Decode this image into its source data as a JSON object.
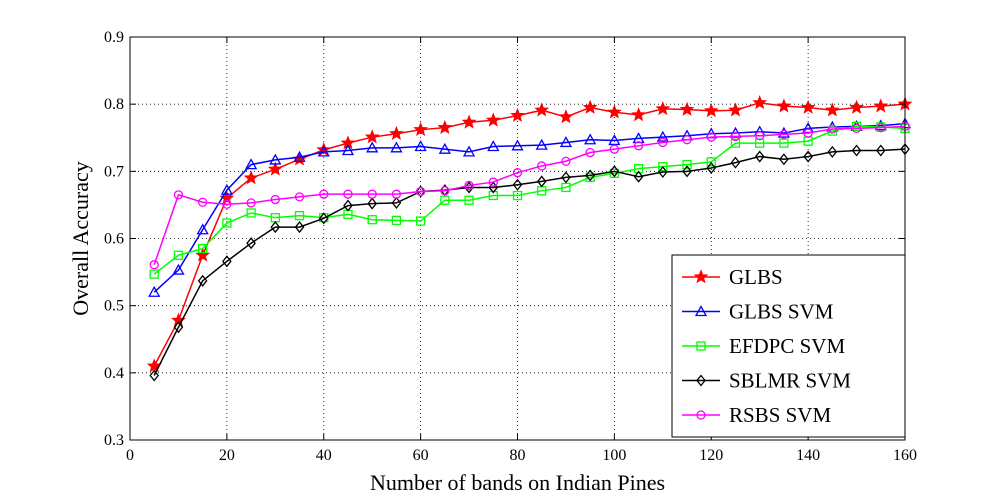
{
  "chart_data": {
    "type": "line",
    "xlabel": "Number of bands on Indian Pines",
    "ylabel": "Overall Accuracy",
    "xlim": [
      0,
      160
    ],
    "ylim": [
      0.3,
      0.9
    ],
    "x_ticks": [
      "0",
      "20",
      "40",
      "60",
      "80",
      "100",
      "120",
      "140",
      "160"
    ],
    "y_ticks": [
      "0.3",
      "0.4",
      "0.5",
      "0.6",
      "0.7",
      "0.8",
      "0.9"
    ],
    "grid": true,
    "grid_style": "dotted",
    "legend_position": "bottom-right",
    "x": [
      5,
      10,
      15,
      20,
      25,
      30,
      35,
      40,
      45,
      50,
      55,
      60,
      65,
      70,
      75,
      80,
      85,
      90,
      95,
      100,
      105,
      110,
      115,
      120,
      125,
      130,
      135,
      140,
      145,
      150,
      155,
      160
    ],
    "series": [
      {
        "name": "GLBS",
        "color": "#ff0000",
        "marker": "star",
        "values": [
          0.41,
          0.478,
          0.575,
          0.66,
          0.69,
          0.703,
          0.718,
          0.732,
          0.742,
          0.751,
          0.756,
          0.762,
          0.765,
          0.773,
          0.776,
          0.783,
          0.791,
          0.781,
          0.795,
          0.788,
          0.784,
          0.793,
          0.792,
          0.79,
          0.791,
          0.802,
          0.797,
          0.795,
          0.791,
          0.795,
          0.797,
          0.8
        ]
      },
      {
        "name": "GLBS SVM",
        "color": "#0000ff",
        "marker": "triangle",
        "values": [
          0.52,
          0.553,
          0.613,
          0.672,
          0.71,
          0.717,
          0.721,
          0.729,
          0.731,
          0.735,
          0.735,
          0.737,
          0.733,
          0.729,
          0.737,
          0.738,
          0.739,
          0.743,
          0.747,
          0.746,
          0.749,
          0.751,
          0.753,
          0.756,
          0.757,
          0.759,
          0.757,
          0.764,
          0.766,
          0.767,
          0.768,
          0.771
        ]
      },
      {
        "name": "EFDPC SVM",
        "color": "#00ff00",
        "marker": "square",
        "values": [
          0.547,
          0.575,
          0.585,
          0.623,
          0.638,
          0.631,
          0.634,
          0.631,
          0.636,
          0.628,
          0.627,
          0.626,
          0.657,
          0.657,
          0.664,
          0.664,
          0.671,
          0.676,
          0.691,
          0.697,
          0.704,
          0.707,
          0.71,
          0.714,
          0.742,
          0.742,
          0.742,
          0.745,
          0.76,
          0.767,
          0.766,
          0.764
        ]
      },
      {
        "name": "SBLMR SVM",
        "color": "#000000",
        "marker": "diamond",
        "values": [
          0.396,
          0.468,
          0.537,
          0.566,
          0.593,
          0.617,
          0.617,
          0.63,
          0.649,
          0.652,
          0.653,
          0.67,
          0.672,
          0.676,
          0.676,
          0.68,
          0.685,
          0.691,
          0.694,
          0.7,
          0.692,
          0.699,
          0.7,
          0.705,
          0.713,
          0.722,
          0.718,
          0.722,
          0.729,
          0.731,
          0.731,
          0.733
        ]
      },
      {
        "name": "RSBS SVM",
        "color": "#ff00ff",
        "marker": "circle",
        "values": [
          0.561,
          0.665,
          0.654,
          0.651,
          0.653,
          0.658,
          0.662,
          0.666,
          0.666,
          0.666,
          0.666,
          0.67,
          0.671,
          0.679,
          0.684,
          0.698,
          0.708,
          0.715,
          0.728,
          0.733,
          0.738,
          0.743,
          0.747,
          0.751,
          0.752,
          0.753,
          0.755,
          0.757,
          0.763,
          0.764,
          0.765,
          0.767
        ]
      }
    ]
  }
}
